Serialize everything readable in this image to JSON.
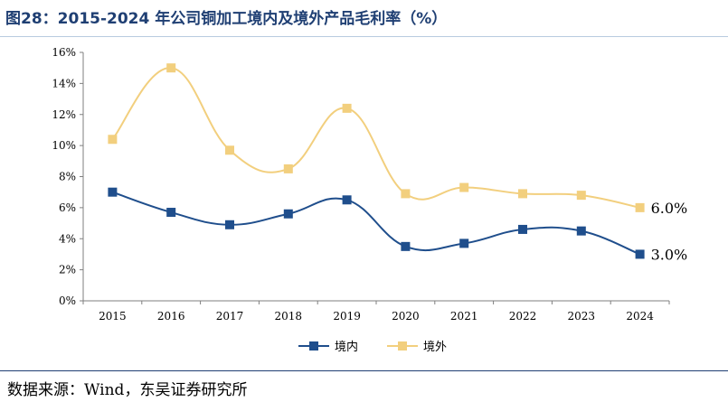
{
  "title": "图28：2015-2024 年公司铜加工境内及境外产品毛利率（%）",
  "source": "数据来源：Wind，东吴证券研究所",
  "chart_data": {
    "type": "line",
    "title": "2015-2024 年公司铜加工境内及境外产品毛利率（%）",
    "xlabel": "",
    "ylabel": "",
    "categories": [
      "2015",
      "2016",
      "2017",
      "2018",
      "2019",
      "2020",
      "2021",
      "2022",
      "2023",
      "2024"
    ],
    "ylim": [
      0,
      16
    ],
    "yticks": [
      0,
      2,
      4,
      6,
      8,
      10,
      12,
      14,
      16
    ],
    "ytick_labels": [
      "0%",
      "2%",
      "4%",
      "6%",
      "8%",
      "10%",
      "12%",
      "14%",
      "16%"
    ],
    "grid": false,
    "legend_position": "bottom",
    "series": [
      {
        "name": "境内",
        "color": "#1f4e8c",
        "marker": "square",
        "values": [
          7.0,
          5.7,
          4.9,
          5.6,
          6.5,
          3.5,
          3.7,
          4.6,
          4.5,
          3.0
        ]
      },
      {
        "name": "境外",
        "color": "#f2cf7e",
        "marker": "square",
        "values": [
          10.4,
          15.0,
          9.7,
          8.5,
          12.4,
          6.9,
          7.3,
          6.9,
          6.8,
          6.0
        ]
      }
    ],
    "annotations": [
      {
        "series": "境外",
        "category": "2024",
        "text": "6.0%"
      },
      {
        "series": "境内",
        "category": "2024",
        "text": "3.0%"
      }
    ]
  }
}
